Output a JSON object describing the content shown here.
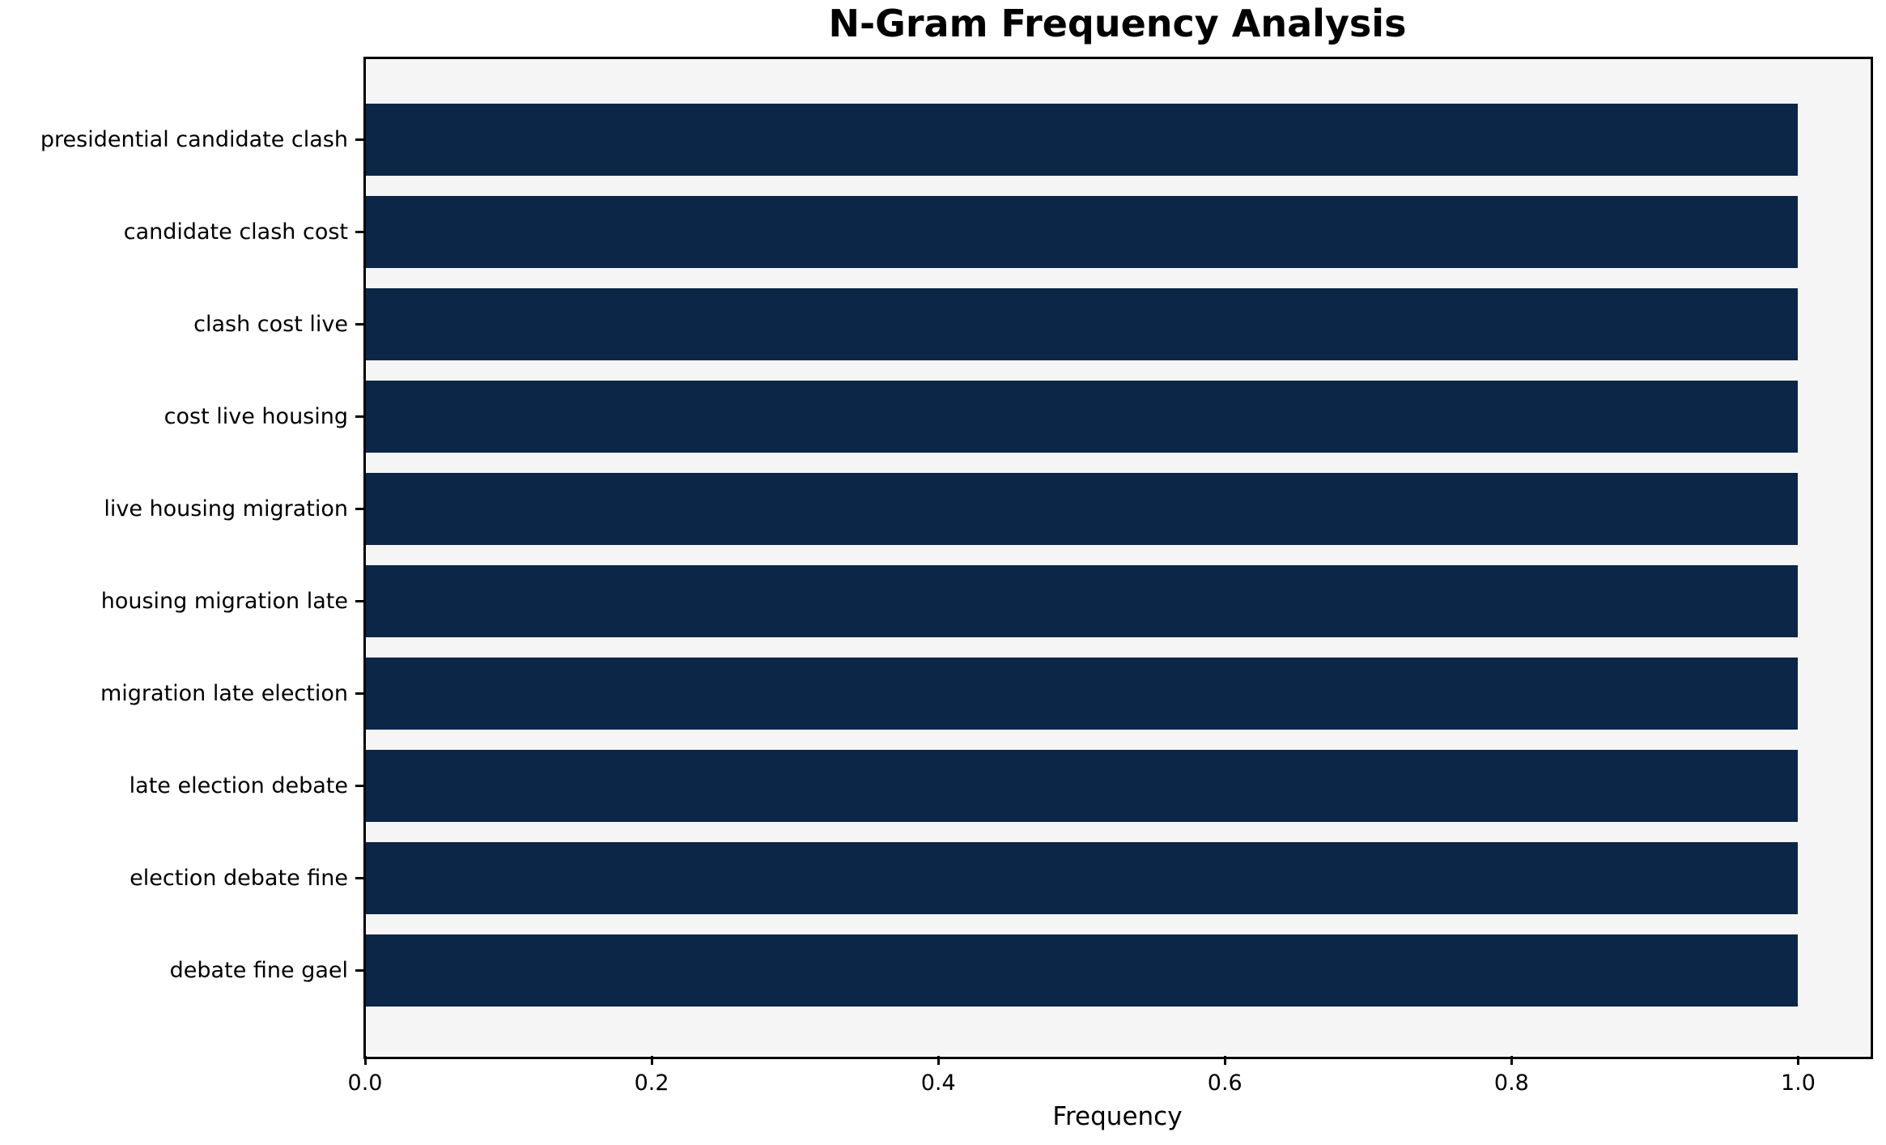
{
  "title": "N-Gram Frequency Analysis",
  "xlabel": "Frequency",
  "colors": {
    "bar": "#0c2647",
    "plot_bg": "#f5f5f5",
    "figure_bg": "#ffffff",
    "spine": "#000000",
    "text": "#000000"
  },
  "chart_data": {
    "type": "bar",
    "orientation": "horizontal",
    "title": "N-Gram Frequency Analysis",
    "xlabel": "Frequency",
    "ylabel": "",
    "categories": [
      "presidential candidate clash",
      "candidate clash cost",
      "clash cost live",
      "cost live housing",
      "live housing migration",
      "housing migration late",
      "migration late election",
      "late election debate",
      "election debate fine",
      "debate fine gael"
    ],
    "values": [
      1.0,
      1.0,
      1.0,
      1.0,
      1.0,
      1.0,
      1.0,
      1.0,
      1.0,
      1.0
    ],
    "xlim": [
      0,
      1.05
    ],
    "xticks": [
      0.0,
      0.2,
      0.4,
      0.6,
      0.8,
      1.0
    ],
    "xtick_labels": [
      "0.0",
      "0.2",
      "0.4",
      "0.6",
      "0.8",
      "1.0"
    ],
    "grid": false,
    "legend": null,
    "bar_color": "#0c2647"
  }
}
